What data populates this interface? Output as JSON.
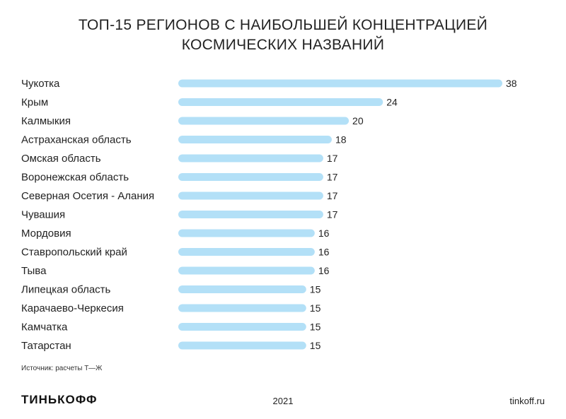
{
  "chart_data": {
    "type": "bar",
    "orientation": "horizontal",
    "title_lines": [
      "ТОП-15 РЕГИОНОВ С НАИБОЛЬШЕЙ КОНЦЕНТРАЦИЕЙ",
      "КОСМИЧЕСКИХ НАЗВАНИЙ"
    ],
    "categories": [
      "Чукотка",
      "Крым",
      "Калмыкия",
      "Астраханская область",
      "Омская область",
      "Воронежская область",
      "Северная Осетия - Алания",
      "Чувашия",
      "Мордовия",
      "Ставропольский край",
      "Тыва",
      "Липецкая область",
      "Карачаево-Черкесия",
      "Камчатка",
      "Татарстан"
    ],
    "values": [
      38,
      24,
      20,
      18,
      17,
      17,
      17,
      17,
      16,
      16,
      16,
      15,
      15,
      15,
      15
    ],
    "bar_color": "#b3e0f7",
    "xlim": [
      0,
      38
    ],
    "grid": false,
    "legend": "none"
  },
  "source": "Источник: расчеты Т—Ж",
  "footer": {
    "logo": "ТИНЬКОФФ",
    "year": "2021",
    "site": "tinkoff.ru"
  }
}
